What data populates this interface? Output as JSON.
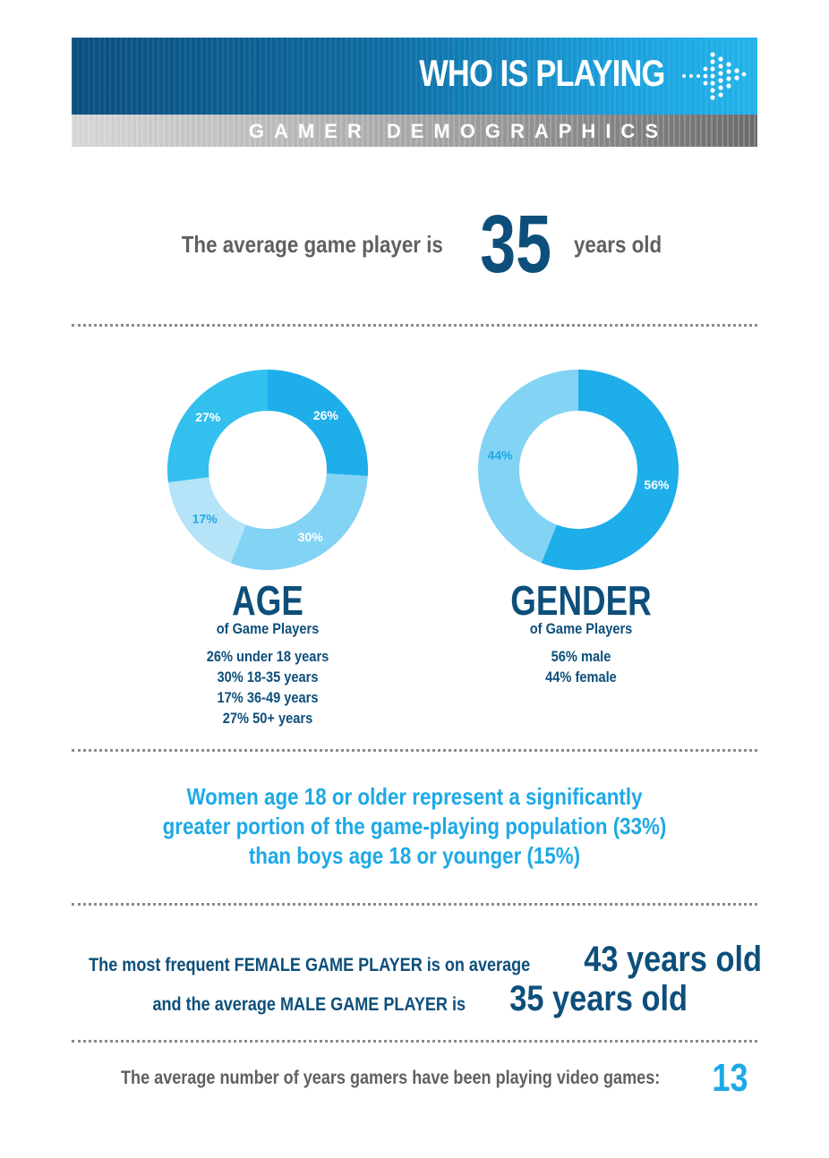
{
  "header": {
    "title": "WHO IS PLAYING",
    "subtitle": "GAMER DEMOGRAPHICS"
  },
  "average_age": {
    "prefix": "The average game player is",
    "value": "35",
    "suffix": "years old"
  },
  "chart_data": [
    {
      "type": "pie",
      "donut": true,
      "title": "AGE",
      "subtitle": "of Game Players",
      "slices": [
        {
          "label": "26% under 18 years",
          "value": 26,
          "value_label": "26%",
          "color": "#1eaeea"
        },
        {
          "label": "30% 18-35 years",
          "value": 30,
          "value_label": "30%",
          "color": "#83d3f5"
        },
        {
          "label": "17% 36-49 years",
          "value": 17,
          "value_label": "17%",
          "color": "#b5e3f8"
        },
        {
          "label": "27% 50+ years",
          "value": 27,
          "value_label": "27%",
          "color": "#33c0ee"
        }
      ]
    },
    {
      "type": "pie",
      "donut": true,
      "title": "GENDER",
      "subtitle": "of Game Players",
      "slices": [
        {
          "label": "56% male",
          "value": 56,
          "value_label": "56%",
          "color": "#1eaeea"
        },
        {
          "label": "44% female",
          "value": 44,
          "value_label": "44%",
          "color": "#83d3f5"
        }
      ]
    }
  ],
  "women_stat": {
    "lines": [
      "Women age 18 or older represent a significantly",
      "greater portion of the game-playing population (33%)",
      "than boys age 18 or younger (15%)"
    ]
  },
  "female_player": {
    "text": "The most frequent FEMALE GAME PLAYER is on average",
    "value": "43 years old"
  },
  "male_player": {
    "text": "and the average MALE GAME PLAYER is",
    "value": "35 years old"
  },
  "years_playing": {
    "text": "The average number of years gamers have been playing video games:",
    "value": "13"
  },
  "colors": {
    "navy": "#0d4f7a",
    "accent": "#1ea9e6",
    "grey_text": "#5f6062"
  }
}
